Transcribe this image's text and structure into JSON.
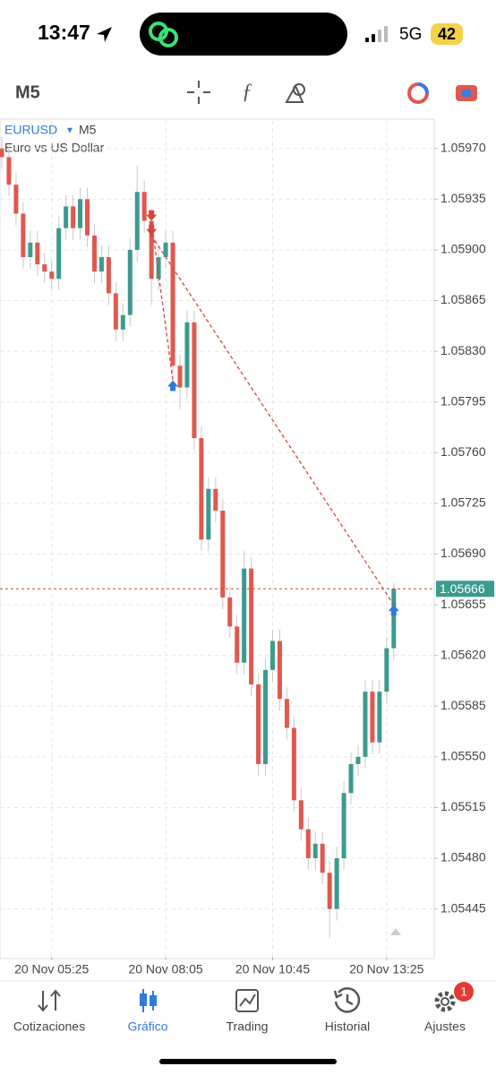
{
  "status_bar": {
    "time": "13:47",
    "network": "5G",
    "battery": 42
  },
  "toolbar": {
    "timeframe": "M5"
  },
  "chart_data": {
    "type": "candlestick",
    "symbol": "EURUSD",
    "timeframe": "M5",
    "description": "Euro vs US Dollar",
    "up_color": "#3a9b8e",
    "down_color": "#e0584f",
    "grid": true,
    "current_price": 1.05666,
    "categories": [
      null,
      null,
      null,
      null,
      null,
      null,
      null,
      "20 Nov 05:25",
      null,
      null,
      null,
      null,
      null,
      null,
      null,
      null,
      null,
      null,
      null,
      null,
      null,
      null,
      null,
      "20 Nov 08:05",
      null,
      null,
      null,
      null,
      null,
      null,
      null,
      null,
      null,
      null,
      null,
      null,
      null,
      null,
      "20 Nov 10:45",
      null,
      null,
      null,
      null,
      null,
      null,
      null,
      null,
      null,
      null,
      null,
      null,
      null,
      null,
      null,
      "20 Nov 13:25",
      null
    ],
    "open": [
      1.0597,
      1.05964,
      1.05945,
      1.05925,
      1.05895,
      1.05905,
      1.0589,
      1.05885,
      1.0588,
      1.05915,
      1.0593,
      1.05915,
      1.05935,
      1.0591,
      1.05885,
      1.05895,
      1.0587,
      1.05845,
      1.05855,
      1.059,
      1.0594,
      1.0592,
      1.0588,
      1.05895,
      1.05905,
      1.0582,
      1.05805,
      1.0585,
      1.0577,
      1.057,
      1.05735,
      1.0572,
      1.0566,
      1.0564,
      1.05615,
      1.0568,
      1.056,
      1.05545,
      1.0561,
      1.0563,
      1.0559,
      1.0557,
      1.0552,
      1.055,
      1.0548,
      1.0549,
      1.0547,
      1.05445,
      1.0548,
      1.05525,
      1.05545,
      1.0555,
      1.05595,
      1.0556,
      1.05595,
      1.05625
    ],
    "high": [
      1.05978,
      1.05972,
      1.05953,
      1.05933,
      1.05913,
      1.05913,
      1.05898,
      1.05893,
      1.05923,
      1.05938,
      1.05938,
      1.05943,
      1.05943,
      1.05918,
      1.05903,
      1.05903,
      1.05878,
      1.05863,
      1.05908,
      1.05958,
      1.05948,
      1.05928,
      1.05903,
      1.05913,
      1.05913,
      1.05828,
      1.05858,
      1.05858,
      1.05778,
      1.05743,
      1.05743,
      1.05728,
      1.05668,
      1.05648,
      1.05692,
      1.05688,
      1.05608,
      1.05618,
      1.05638,
      1.05638,
      1.05598,
      1.05578,
      1.05528,
      1.05508,
      1.05498,
      1.05498,
      1.05478,
      1.05488,
      1.05533,
      1.05553,
      1.05558,
      1.05603,
      1.05603,
      1.05603,
      1.05633,
      1.0567
    ],
    "low": [
      1.05956,
      1.05937,
      1.05917,
      1.05887,
      1.05887,
      1.05882,
      1.05877,
      1.05872,
      1.05872,
      1.05907,
      1.05907,
      1.05907,
      1.05902,
      1.05877,
      1.05877,
      1.05862,
      1.05837,
      1.05837,
      1.05847,
      1.05892,
      1.05912,
      1.05862,
      1.05872,
      1.05887,
      1.05812,
      1.0579,
      1.05797,
      1.05762,
      1.05692,
      1.05692,
      1.05712,
      1.05652,
      1.05632,
      1.05607,
      1.05607,
      1.05592,
      1.05537,
      1.05537,
      1.05602,
      1.05582,
      1.05562,
      1.05512,
      1.05492,
      1.05472,
      1.05472,
      1.05462,
      1.05425,
      1.05437,
      1.05472,
      1.05517,
      1.05537,
      1.05542,
      1.05552,
      1.05552,
      1.05587,
      1.05617
    ],
    "close": [
      1.05964,
      1.05945,
      1.05925,
      1.05895,
      1.05905,
      1.0589,
      1.05885,
      1.0588,
      1.05915,
      1.0593,
      1.05915,
      1.05935,
      1.0591,
      1.05885,
      1.05895,
      1.0587,
      1.05845,
      1.05855,
      1.059,
      1.0594,
      1.0592,
      1.0588,
      1.05895,
      1.05905,
      1.0582,
      1.05805,
      1.0585,
      1.0577,
      1.057,
      1.05735,
      1.0572,
      1.0566,
      1.0564,
      1.05615,
      1.0568,
      1.056,
      1.05545,
      1.0561,
      1.0563,
      1.0559,
      1.0557,
      1.0552,
      1.055,
      1.0548,
      1.0549,
      1.0547,
      1.05445,
      1.0548,
      1.05525,
      1.05545,
      1.0555,
      1.05595,
      1.0556,
      1.05595,
      1.05625,
      1.05666
    ],
    "trades": [
      {
        "open_index": 21,
        "open_price": 1.0592,
        "close_index": 24,
        "close_price": 1.0581
      },
      {
        "open_index": 21,
        "open_price": 1.0591,
        "close_index": 55,
        "close_price": 1.05655
      }
    ],
    "ylim": [
      1.05412,
      1.05989
    ],
    "yticks": [
      {
        "value": 1.0597,
        "label": "1.05970"
      },
      1.05935,
      {
        "value": 1.059,
        "label": "1.05900"
      },
      1.05865,
      {
        "value": 1.0583,
        "label": "1.05830"
      },
      1.05795,
      {
        "value": 1.0576,
        "label": "1.05760"
      },
      1.05725,
      {
        "value": 1.0569,
        "label": "1.05690"
      },
      1.05655,
      {
        "value": 1.0562,
        "label": "1.05620"
      },
      1.05585,
      {
        "value": 1.0555,
        "label": "1.05550"
      },
      1.05515,
      {
        "value": 1.0548,
        "label": "1.05480"
      },
      1.05445
    ]
  },
  "nav": {
    "items": [
      "Cotizaciones",
      "Gráfico",
      "Trading",
      "Historial",
      "Ajustes"
    ],
    "active": 1,
    "badge": 1
  }
}
